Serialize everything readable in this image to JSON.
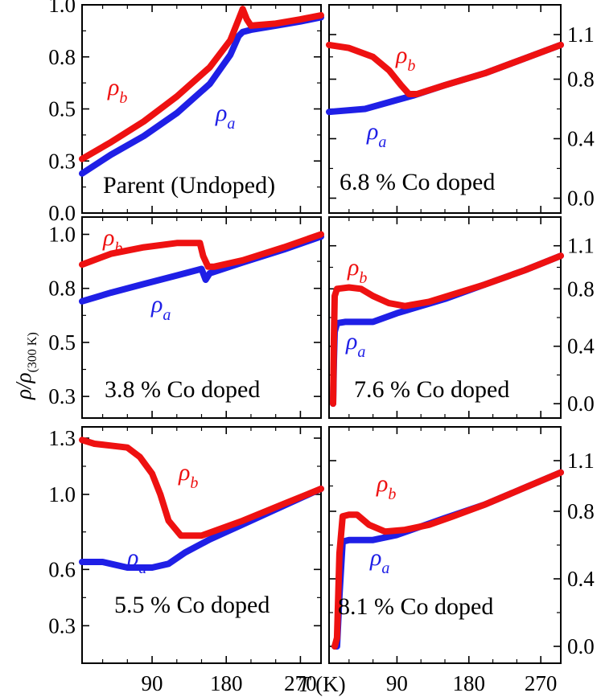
{
  "colors": {
    "rho_a": "#1f1fe6",
    "rho_b": "#ee1111",
    "axis": "#000000"
  },
  "labels": {
    "rho": "ρ",
    "a": "a",
    "b": "b"
  },
  "axes": {
    "x_title": "T",
    "x_unit": "(K)",
    "y_title": "ρ/ρ",
    "y_subscript": "(300 K)"
  },
  "chart_data": [
    {
      "type": "line",
      "panel": "Parent (Undoped)",
      "title": "Parent (Undoped)",
      "y_side": "left",
      "xlim": [
        5,
        295
      ],
      "ylim": [
        0.0,
        1.0
      ],
      "xticks": [],
      "yticks": [
        "0.0",
        "0.3",
        "0.5",
        "0.8",
        "1.0"
      ],
      "ytick_values": [
        0.0,
        0.25,
        0.5,
        0.75,
        1.0
      ],
      "series": [
        {
          "name": "ρa",
          "x": [
            5,
            40,
            80,
            120,
            160,
            185,
            195,
            200,
            210,
            240,
            270,
            295
          ],
          "y": [
            0.19,
            0.28,
            0.37,
            0.48,
            0.62,
            0.76,
            0.85,
            0.87,
            0.88,
            0.9,
            0.92,
            0.94
          ]
        },
        {
          "name": "ρb",
          "x": [
            5,
            40,
            80,
            120,
            160,
            185,
            195,
            200,
            205,
            210,
            240,
            270,
            295
          ],
          "y": [
            0.26,
            0.34,
            0.44,
            0.56,
            0.7,
            0.83,
            0.93,
            0.98,
            0.93,
            0.9,
            0.91,
            0.93,
            0.95
          ]
        }
      ]
    },
    {
      "type": "line",
      "panel": "6.8 % Co doped",
      "title": "6.8 % Co doped",
      "y_side": "right",
      "xlim": [
        5,
        295
      ],
      "ylim": [
        -0.1,
        1.3
      ],
      "xticks": [],
      "yticks": [
        "0.0",
        "0.4",
        "0.8",
        "1.1"
      ],
      "ytick_values": [
        0.0,
        0.4,
        0.8,
        1.1
      ],
      "series": [
        {
          "name": "ρa",
          "x": [
            5,
            50,
            90,
            110,
            150,
            200,
            250,
            295
          ],
          "y": [
            0.58,
            0.6,
            0.66,
            0.69,
            0.76,
            0.84,
            0.94,
            1.03
          ]
        },
        {
          "name": "ρb",
          "x": [
            5,
            30,
            60,
            80,
            95,
            105,
            115,
            150,
            200,
            250,
            295
          ],
          "y": [
            1.03,
            1.01,
            0.95,
            0.86,
            0.76,
            0.7,
            0.7,
            0.76,
            0.84,
            0.94,
            1.03
          ]
        }
      ]
    },
    {
      "type": "line",
      "panel": "3.8 % Co doped",
      "title": "3.8 % Co doped",
      "y_side": "left",
      "xlim": [
        5,
        295
      ],
      "ylim": [
        0.15,
        1.08
      ],
      "xticks": [],
      "yticks": [
        "0.3",
        "0.5",
        "0.8",
        "1.0"
      ],
      "ytick_values": [
        0.25,
        0.5,
        0.75,
        1.0
      ],
      "series": [
        {
          "name": "ρa",
          "x": [
            5,
            40,
            80,
            120,
            150,
            155,
            160,
            200,
            250,
            295
          ],
          "y": [
            0.69,
            0.73,
            0.77,
            0.81,
            0.84,
            0.79,
            0.82,
            0.87,
            0.93,
            0.99
          ]
        },
        {
          "name": "ρb",
          "x": [
            5,
            40,
            80,
            120,
            148,
            152,
            158,
            165,
            200,
            250,
            295
          ],
          "y": [
            0.86,
            0.91,
            0.94,
            0.96,
            0.96,
            0.9,
            0.85,
            0.85,
            0.88,
            0.94,
            1.0
          ]
        }
      ]
    },
    {
      "type": "line",
      "panel": "7.6 % Co doped",
      "title": "7.6 % Co doped",
      "y_side": "right",
      "xlim": [
        5,
        295
      ],
      "ylim": [
        -0.1,
        1.3
      ],
      "xticks": [],
      "yticks": [
        "0.0",
        "0.4",
        "0.8",
        "1.1"
      ],
      "ytick_values": [
        0.0,
        0.4,
        0.8,
        1.1
      ],
      "series": [
        {
          "name": "ρa",
          "x": [
            10,
            11,
            12,
            15,
            25,
            60,
            90,
            120,
            150,
            200,
            250,
            295
          ],
          "y": [
            0.0,
            0.3,
            0.5,
            0.56,
            0.57,
            0.57,
            0.63,
            0.68,
            0.73,
            0.83,
            0.93,
            1.03
          ]
        },
        {
          "name": "ρb",
          "x": [
            10,
            11,
            12,
            15,
            30,
            45,
            60,
            80,
            100,
            130,
            200,
            250,
            295
          ],
          "y": [
            0.0,
            0.45,
            0.75,
            0.8,
            0.81,
            0.8,
            0.75,
            0.7,
            0.68,
            0.71,
            0.83,
            0.93,
            1.03
          ]
        }
      ]
    },
    {
      "type": "line",
      "panel": "5.5 % Co doped",
      "title": "5.5 % Co doped",
      "y_side": "left",
      "xlim": [
        5,
        295
      ],
      "ylim": [
        0.1,
        1.36
      ],
      "xticks": [
        "90",
        "180",
        "270"
      ],
      "xtick_values": [
        90,
        180,
        270
      ],
      "yticks": [
        "0.3",
        "0.6",
        "1.0",
        "1.3"
      ],
      "ytick_values": [
        0.3,
        0.6,
        1.0,
        1.3
      ],
      "series": [
        {
          "name": "ρa",
          "x": [
            5,
            30,
            60,
            90,
            110,
            130,
            160,
            200,
            250,
            295
          ],
          "y": [
            0.64,
            0.64,
            0.61,
            0.61,
            0.63,
            0.69,
            0.76,
            0.84,
            0.94,
            1.03
          ]
        },
        {
          "name": "ρb",
          "x": [
            5,
            20,
            40,
            60,
            75,
            90,
            100,
            110,
            125,
            150,
            200,
            250,
            295
          ],
          "y": [
            1.29,
            1.27,
            1.26,
            1.25,
            1.2,
            1.11,
            1.0,
            0.86,
            0.78,
            0.78,
            0.86,
            0.95,
            1.03
          ]
        }
      ]
    },
    {
      "type": "line",
      "panel": "8.1 % Co doped",
      "title": "8.1 % Co doped",
      "y_side": "right",
      "xlim": [
        5,
        295
      ],
      "ylim": [
        -0.1,
        1.3
      ],
      "xticks": [
        "90",
        "180",
        "270"
      ],
      "xtick_values": [
        90,
        180,
        270
      ],
      "yticks": [
        "0.0",
        "0.4",
        "0.8",
        "1.1"
      ],
      "ytick_values": [
        0.0,
        0.4,
        0.8,
        1.1
      ],
      "series": [
        {
          "name": "ρa",
          "x": [
            12,
            15,
            18,
            22,
            30,
            60,
            90,
            120,
            150,
            200,
            250,
            295
          ],
          "y": [
            0.0,
            0.0,
            0.3,
            0.62,
            0.63,
            0.63,
            0.66,
            0.71,
            0.76,
            0.84,
            0.94,
            1.03
          ]
        },
        {
          "name": "ρb",
          "x": [
            12,
            15,
            18,
            22,
            30,
            40,
            55,
            75,
            100,
            130,
            160,
            200,
            250,
            295
          ],
          "y": [
            0.0,
            0.05,
            0.55,
            0.77,
            0.78,
            0.78,
            0.72,
            0.68,
            0.69,
            0.72,
            0.77,
            0.84,
            0.94,
            1.03
          ]
        }
      ]
    }
  ]
}
